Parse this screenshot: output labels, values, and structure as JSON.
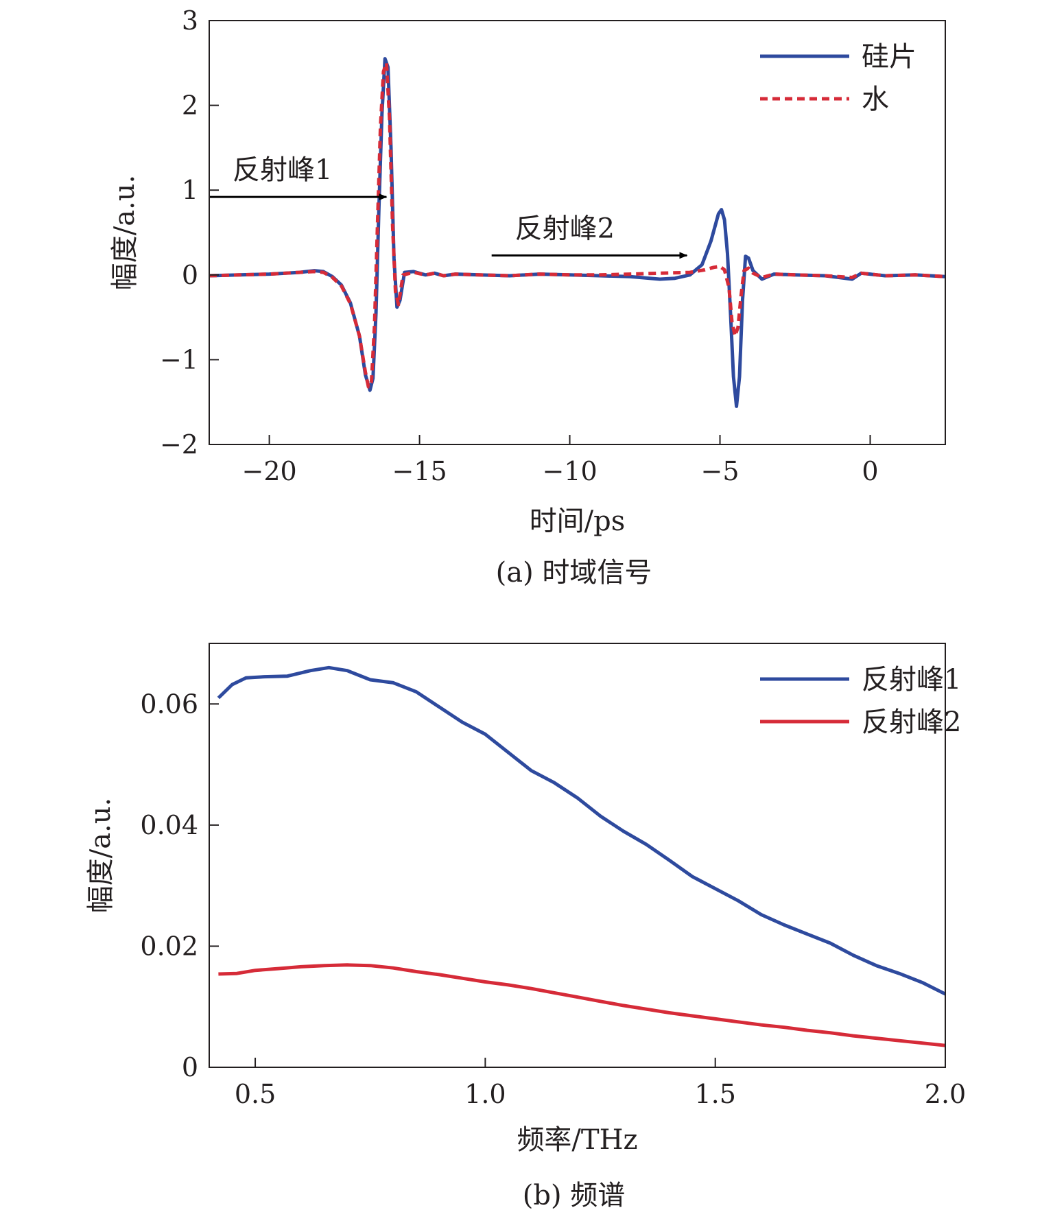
{
  "chart_data": [
    {
      "type": "line",
      "caption": "(a) 时域信号",
      "xlabel": "时间/ps",
      "ylabel": "幅度/a.u.",
      "xlim": [
        -22,
        2.5
      ],
      "ylim": [
        -2,
        3
      ],
      "xticks": [
        -20,
        -15,
        -10,
        -5,
        0
      ],
      "xtick_labels": [
        "−20",
        "−15",
        "−10",
        "−5",
        "0"
      ],
      "yticks": [
        -2,
        -1,
        0,
        1,
        2,
        3
      ],
      "ytick_labels": [
        "−2",
        "−1",
        "0",
        "1",
        "2",
        "3"
      ],
      "legend_position": "top-right",
      "series": [
        {
          "name": "硅片",
          "color": "#2e4a9e",
          "style": "solid",
          "points": [
            [
              -22,
              -0.01
            ],
            [
              -21,
              0.0
            ],
            [
              -20,
              0.01
            ],
            [
              -19,
              0.03
            ],
            [
              -18.5,
              0.05
            ],
            [
              -18.2,
              0.04
            ],
            [
              -17.9,
              -0.02
            ],
            [
              -17.6,
              -0.12
            ],
            [
              -17.3,
              -0.33
            ],
            [
              -17.0,
              -0.72
            ],
            [
              -16.8,
              -1.18
            ],
            [
              -16.65,
              -1.36
            ],
            [
              -16.55,
              -1.22
            ],
            [
              -16.45,
              -0.45
            ],
            [
              -16.35,
              0.8
            ],
            [
              -16.25,
              1.9
            ],
            [
              -16.15,
              2.55
            ],
            [
              -16.05,
              2.45
            ],
            [
              -15.95,
              1.5
            ],
            [
              -15.85,
              0.2
            ],
            [
              -15.75,
              -0.38
            ],
            [
              -15.65,
              -0.3
            ],
            [
              -15.5,
              0.03
            ],
            [
              -15.2,
              0.04
            ],
            [
              -14.8,
              0.0
            ],
            [
              -14.5,
              0.02
            ],
            [
              -14.2,
              -0.01
            ],
            [
              -13.8,
              0.01
            ],
            [
              -13,
              0.0
            ],
            [
              -12,
              -0.01
            ],
            [
              -11,
              0.01
            ],
            [
              -10,
              0.0
            ],
            [
              -9,
              -0.01
            ],
            [
              -8,
              -0.02
            ],
            [
              -7,
              -0.05
            ],
            [
              -6.5,
              -0.04
            ],
            [
              -6.0,
              0.0
            ],
            [
              -5.6,
              0.12
            ],
            [
              -5.3,
              0.4
            ],
            [
              -5.05,
              0.72
            ],
            [
              -4.95,
              0.77
            ],
            [
              -4.85,
              0.65
            ],
            [
              -4.75,
              0.25
            ],
            [
              -4.65,
              -0.45
            ],
            [
              -4.55,
              -1.2
            ],
            [
              -4.45,
              -1.55
            ],
            [
              -4.35,
              -1.2
            ],
            [
              -4.25,
              -0.3
            ],
            [
              -4.15,
              0.22
            ],
            [
              -4.05,
              0.2
            ],
            [
              -3.9,
              0.05
            ],
            [
              -3.6,
              -0.05
            ],
            [
              -3.2,
              0.01
            ],
            [
              -2.5,
              0.0
            ],
            [
              -1.5,
              -0.01
            ],
            [
              -0.6,
              -0.05
            ],
            [
              -0.3,
              0.02
            ],
            [
              0.5,
              -0.01
            ],
            [
              1.5,
              0.0
            ],
            [
              2.5,
              -0.02
            ]
          ]
        },
        {
          "name": "水",
          "color": "#d62b38",
          "style": "dashed",
          "points": [
            [
              -22,
              -0.01
            ],
            [
              -21,
              0.0
            ],
            [
              -20,
              0.01
            ],
            [
              -19,
              0.03
            ],
            [
              -18.5,
              0.04
            ],
            [
              -18.2,
              0.03
            ],
            [
              -17.9,
              -0.03
            ],
            [
              -17.6,
              -0.13
            ],
            [
              -17.3,
              -0.34
            ],
            [
              -17.0,
              -0.72
            ],
            [
              -16.8,
              -1.15
            ],
            [
              -16.7,
              -1.32
            ],
            [
              -16.6,
              -1.26
            ],
            [
              -16.5,
              -0.6
            ],
            [
              -16.4,
              0.6
            ],
            [
              -16.3,
              1.75
            ],
            [
              -16.2,
              2.4
            ],
            [
              -16.1,
              2.5
            ],
            [
              -16.0,
              1.85
            ],
            [
              -15.9,
              0.6
            ],
            [
              -15.8,
              -0.2
            ],
            [
              -15.7,
              -0.35
            ],
            [
              -15.55,
              0.0
            ],
            [
              -15.2,
              0.03
            ],
            [
              -14.8,
              0.0
            ],
            [
              -14.5,
              0.02
            ],
            [
              -14.2,
              -0.01
            ],
            [
              -13.8,
              0.01
            ],
            [
              -13,
              0.0
            ],
            [
              -12,
              -0.01
            ],
            [
              -11,
              0.01
            ],
            [
              -10,
              0.0
            ],
            [
              -9,
              0.0
            ],
            [
              -8,
              0.01
            ],
            [
              -7,
              0.02
            ],
            [
              -6,
              0.03
            ],
            [
              -5.5,
              0.06
            ],
            [
              -5.2,
              0.09
            ],
            [
              -5.0,
              0.1
            ],
            [
              -4.85,
              0.06
            ],
            [
              -4.7,
              -0.15
            ],
            [
              -4.6,
              -0.55
            ],
            [
              -4.5,
              -0.72
            ],
            [
              -4.4,
              -0.62
            ],
            [
              -4.3,
              -0.25
            ],
            [
              -4.2,
              0.05
            ],
            [
              -4.05,
              0.08
            ],
            [
              -3.9,
              0.02
            ],
            [
              -3.6,
              -0.03
            ],
            [
              -3.2,
              0.01
            ],
            [
              -2.5,
              0.0
            ],
            [
              -1.5,
              -0.01
            ],
            [
              -0.6,
              -0.03
            ],
            [
              -0.3,
              0.02
            ],
            [
              0.5,
              -0.01
            ],
            [
              1.5,
              0.0
            ],
            [
              2.5,
              -0.02
            ]
          ]
        }
      ],
      "annotations": [
        {
          "text": "反射峰1",
          "from": [
            -22,
            0.92
          ],
          "to": [
            -16.1,
            0.92
          ]
        },
        {
          "text": "反射峰2",
          "from": [
            -12.6,
            0.23
          ],
          "to": [
            -6.1,
            0.23
          ]
        }
      ]
    },
    {
      "type": "line",
      "caption": "(b) 频谱",
      "xlabel": "频率/THz",
      "ylabel": "幅度/a.u.",
      "xlim": [
        0.4,
        2.0
      ],
      "ylim": [
        0,
        0.07
      ],
      "xticks": [
        0.5,
        1.0,
        1.5,
        2.0
      ],
      "xtick_labels": [
        "0.5",
        "1.0",
        "1.5",
        "2.0"
      ],
      "yticks": [
        0,
        0.02,
        0.04,
        0.06
      ],
      "ytick_labels": [
        "0",
        "0.02",
        "0.04",
        "0.06"
      ],
      "legend_position": "top-right",
      "series": [
        {
          "name": "反射峰1",
          "color": "#2e4a9e",
          "style": "solid",
          "points": [
            [
              0.42,
              0.061
            ],
            [
              0.45,
              0.0632
            ],
            [
              0.48,
              0.0643
            ],
            [
              0.52,
              0.0645
            ],
            [
              0.57,
              0.0646
            ],
            [
              0.62,
              0.0655
            ],
            [
              0.66,
              0.066
            ],
            [
              0.7,
              0.0655
            ],
            [
              0.75,
              0.064
            ],
            [
              0.8,
              0.0635
            ],
            [
              0.85,
              0.062
            ],
            [
              0.9,
              0.0595
            ],
            [
              0.95,
              0.057
            ],
            [
              1.0,
              0.055
            ],
            [
              1.05,
              0.052
            ],
            [
              1.1,
              0.049
            ],
            [
              1.15,
              0.047
            ],
            [
              1.2,
              0.0445
            ],
            [
              1.25,
              0.0415
            ],
            [
              1.3,
              0.039
            ],
            [
              1.35,
              0.0368
            ],
            [
              1.4,
              0.0342
            ],
            [
              1.45,
              0.0315
            ],
            [
              1.5,
              0.0295
            ],
            [
              1.55,
              0.0275
            ],
            [
              1.6,
              0.0252
            ],
            [
              1.65,
              0.0235
            ],
            [
              1.7,
              0.022
            ],
            [
              1.75,
              0.0205
            ],
            [
              1.8,
              0.0185
            ],
            [
              1.85,
              0.0168
            ],
            [
              1.9,
              0.0155
            ],
            [
              1.95,
              0.014
            ],
            [
              2.0,
              0.0121
            ]
          ]
        },
        {
          "name": "反射峰2",
          "color": "#d62b38",
          "style": "solid",
          "points": [
            [
              0.42,
              0.0154
            ],
            [
              0.46,
              0.0155
            ],
            [
              0.5,
              0.016
            ],
            [
              0.55,
              0.0163
            ],
            [
              0.6,
              0.0166
            ],
            [
              0.65,
              0.0168
            ],
            [
              0.7,
              0.0169
            ],
            [
              0.75,
              0.0168
            ],
            [
              0.8,
              0.0164
            ],
            [
              0.85,
              0.0158
            ],
            [
              0.9,
              0.0153
            ],
            [
              0.95,
              0.0147
            ],
            [
              1.0,
              0.0141
            ],
            [
              1.05,
              0.0136
            ],
            [
              1.1,
              0.013
            ],
            [
              1.15,
              0.0123
            ],
            [
              1.2,
              0.0116
            ],
            [
              1.25,
              0.0109
            ],
            [
              1.3,
              0.0102
            ],
            [
              1.35,
              0.0096
            ],
            [
              1.4,
              0.009
            ],
            [
              1.45,
              0.0085
            ],
            [
              1.5,
              0.008
            ],
            [
              1.55,
              0.0075
            ],
            [
              1.6,
              0.007
            ],
            [
              1.65,
              0.0066
            ],
            [
              1.7,
              0.0061
            ],
            [
              1.75,
              0.0057
            ],
            [
              1.8,
              0.0052
            ],
            [
              1.85,
              0.0048
            ],
            [
              1.9,
              0.0044
            ],
            [
              1.95,
              0.004
            ],
            [
              2.0,
              0.0036
            ]
          ]
        }
      ]
    }
  ]
}
